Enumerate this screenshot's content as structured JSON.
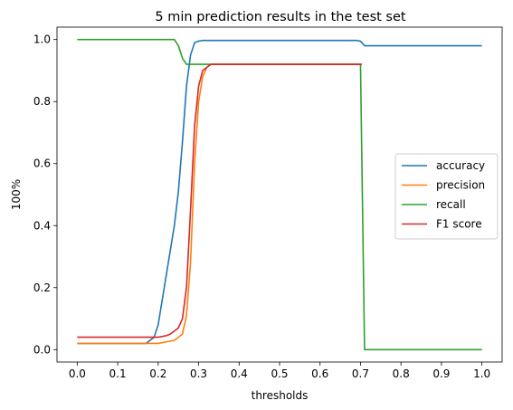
{
  "chart_data": {
    "type": "line",
    "title": "5 min prediction results in the test set",
    "xlabel": "thresholds",
    "ylabel": "100%",
    "xlim": [
      -0.05,
      1.05
    ],
    "ylim": [
      -0.04,
      1.04
    ],
    "xticks": [
      "0.0",
      "0.1",
      "0.2",
      "0.3",
      "0.4",
      "0.5",
      "0.6",
      "0.7",
      "0.8",
      "0.9",
      "1.0"
    ],
    "yticks": [
      "0.0",
      "0.2",
      "0.4",
      "0.6",
      "0.8",
      "1.0"
    ],
    "grid": false,
    "legend_position": "center-right",
    "series": [
      {
        "name": "accuracy",
        "color": "#1f77b4",
        "x": [
          0.0,
          0.17,
          0.18,
          0.19,
          0.2,
          0.21,
          0.22,
          0.23,
          0.24,
          0.25,
          0.26,
          0.27,
          0.28,
          0.29,
          0.3,
          0.31,
          0.32,
          0.4,
          0.5,
          0.6,
          0.69,
          0.7,
          0.71,
          1.0
        ],
        "y": [
          0.02,
          0.02,
          0.03,
          0.04,
          0.08,
          0.16,
          0.24,
          0.32,
          0.4,
          0.51,
          0.67,
          0.85,
          0.95,
          0.99,
          0.995,
          0.997,
          0.997,
          0.997,
          0.997,
          0.997,
          0.997,
          0.995,
          0.98,
          0.98
        ]
      },
      {
        "name": "precision",
        "color": "#ff7f0e",
        "x": [
          0.0,
          0.2,
          0.22,
          0.24,
          0.25,
          0.26,
          0.27,
          0.28,
          0.29,
          0.3,
          0.31,
          0.32,
          0.33,
          0.4,
          0.5,
          0.6,
          0.7,
          0.703
        ],
        "y": [
          0.02,
          0.02,
          0.025,
          0.03,
          0.04,
          0.05,
          0.11,
          0.28,
          0.6,
          0.8,
          0.88,
          0.91,
          0.92,
          0.92,
          0.92,
          0.92,
          0.92,
          0.92
        ]
      },
      {
        "name": "recall",
        "color": "#2ca02c",
        "x": [
          0.0,
          0.24,
          0.25,
          0.26,
          0.27,
          0.28,
          0.3,
          0.4,
          0.5,
          0.6,
          0.7,
          0.71,
          0.8,
          0.9,
          1.0
        ],
        "y": [
          1.0,
          1.0,
          0.98,
          0.94,
          0.92,
          0.92,
          0.92,
          0.92,
          0.92,
          0.92,
          0.92,
          0.0,
          0.0,
          0.0,
          0.0
        ]
      },
      {
        "name": "F1 score",
        "color": "#d62728",
        "x": [
          0.0,
          0.18,
          0.2,
          0.22,
          0.23,
          0.24,
          0.25,
          0.26,
          0.27,
          0.28,
          0.29,
          0.3,
          0.31,
          0.32,
          0.33,
          0.4,
          0.5,
          0.6,
          0.7,
          0.703
        ],
        "y": [
          0.04,
          0.04,
          0.04,
          0.045,
          0.05,
          0.06,
          0.07,
          0.1,
          0.2,
          0.45,
          0.72,
          0.85,
          0.9,
          0.91,
          0.92,
          0.92,
          0.92,
          0.92,
          0.92,
          0.92
        ]
      }
    ]
  }
}
